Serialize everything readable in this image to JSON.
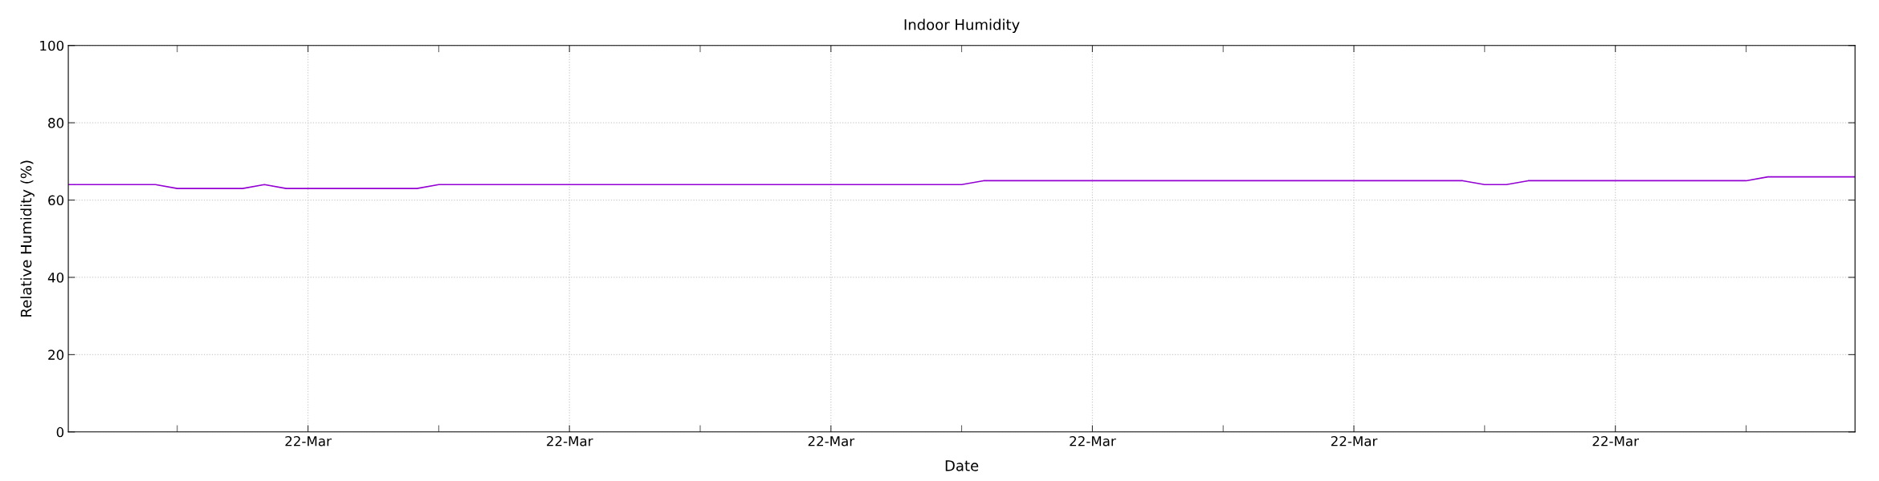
{
  "chart_data": {
    "type": "line",
    "title": "Indoor Humidity",
    "xlabel": "Date",
    "ylabel": "Relative Humidity (%)",
    "categories": [
      null,
      null,
      null,
      null,
      null,
      null,
      null,
      null,
      null,
      null,
      null,
      "22-Mar",
      null,
      null,
      null,
      null,
      null,
      null,
      null,
      null,
      null,
      null,
      null,
      "22-Mar",
      null,
      null,
      null,
      null,
      null,
      null,
      null,
      null,
      null,
      null,
      null,
      "22-Mar",
      null,
      null,
      null,
      null,
      null,
      null,
      null,
      null,
      null,
      null,
      null,
      "22-Mar",
      null,
      null,
      null,
      null,
      null,
      null,
      null,
      null,
      null,
      null,
      null,
      "22-Mar",
      null,
      null,
      null,
      null,
      null,
      null,
      null,
      null,
      null,
      null,
      null,
      "22-Mar",
      null,
      null,
      null,
      null,
      null,
      null,
      null,
      null,
      null,
      null,
      null
    ],
    "series": [
      {
        "color": "#9400d3",
        "values": [
          64,
          64,
          64,
          64,
          64,
          63,
          63,
          63,
          63,
          64,
          63,
          63,
          63,
          63,
          63,
          63,
          63,
          64,
          64,
          64,
          64,
          64,
          64,
          64,
          64,
          64,
          64,
          64,
          64,
          64,
          64,
          64,
          64,
          64,
          64,
          64,
          64,
          64,
          64,
          64,
          64,
          64,
          65,
          65,
          65,
          65,
          65,
          65,
          65,
          65,
          65,
          65,
          65,
          65,
          65,
          65,
          65,
          65,
          65,
          65,
          65,
          65,
          65,
          65,
          65,
          64,
          64,
          65,
          65,
          65,
          65,
          65,
          65,
          65,
          65,
          65,
          65,
          65,
          66,
          66,
          66,
          66,
          66
        ]
      }
    ],
    "ylim": [
      0,
      100
    ],
    "yticks": [
      0,
      20,
      40,
      60,
      80,
      100
    ],
    "grid": true,
    "line_style": "solid",
    "marker": "none",
    "legend": false
  }
}
